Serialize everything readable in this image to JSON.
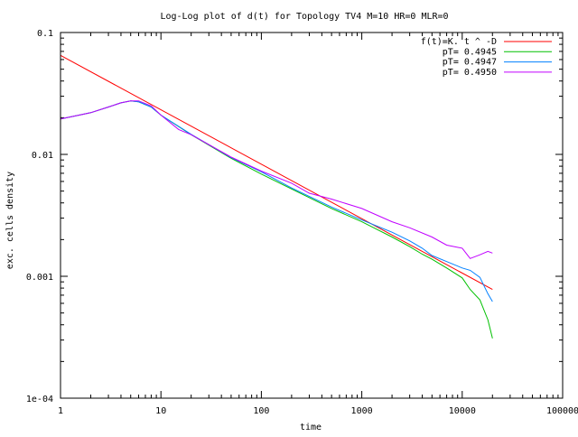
{
  "chart_data": {
    "type": "line",
    "title": "Log-Log plot of d(t) for Topology TV4 M=10 HR=0 MLR=0",
    "xlabel": "time",
    "ylabel": "exc. cells density",
    "xscale": "log",
    "yscale": "log",
    "xlim": [
      1,
      100000
    ],
    "ylim": [
      0.0001,
      0.1
    ],
    "grid": false,
    "legend_position": "top-right",
    "x_ticks": [
      {
        "value": 1,
        "label": "1"
      },
      {
        "value": 10,
        "label": "10"
      },
      {
        "value": 100,
        "label": "100"
      },
      {
        "value": 1000,
        "label": "1000"
      },
      {
        "value": 10000,
        "label": "10000"
      },
      {
        "value": 100000,
        "label": "100000"
      }
    ],
    "y_ticks": [
      {
        "value": 0.0001,
        "label": "1e-04"
      },
      {
        "value": 0.001,
        "label": "0.001"
      },
      {
        "value": 0.01,
        "label": "0.01"
      },
      {
        "value": 0.1,
        "label": "0.1"
      }
    ],
    "series": [
      {
        "name": "f(t)=K. t ^ -D",
        "color": "#ff0000",
        "x": [
          1,
          20000
        ],
        "y": [
          0.065,
          0.00078
        ]
      },
      {
        "name": "pT= 0.4945",
        "color": "#00c000",
        "x": [
          1,
          2,
          3,
          4,
          5,
          6,
          8,
          10,
          20,
          50,
          100,
          200,
          500,
          1000,
          2000,
          3000,
          4000,
          5000,
          7000,
          10000,
          12000,
          15000,
          18000,
          20000
        ],
        "y": [
          0.0195,
          0.022,
          0.0245,
          0.0265,
          0.0275,
          0.027,
          0.0245,
          0.021,
          0.0145,
          0.0093,
          0.0069,
          0.0052,
          0.0036,
          0.0028,
          0.0021,
          0.00175,
          0.00152,
          0.00138,
          0.00117,
          0.00097,
          0.00078,
          0.00064,
          0.00044,
          0.00031
        ]
      },
      {
        "name": "pT= 0.4947",
        "color": "#0080ff",
        "x": [
          1,
          2,
          3,
          4,
          5,
          6,
          8,
          10,
          20,
          50,
          100,
          200,
          500,
          1000,
          2000,
          3000,
          4000,
          5000,
          7000,
          10000,
          12000,
          15000,
          18000,
          20000
        ],
        "y": [
          0.0195,
          0.022,
          0.0245,
          0.0265,
          0.0275,
          0.027,
          0.0245,
          0.021,
          0.0146,
          0.0094,
          0.0072,
          0.0053,
          0.0037,
          0.0029,
          0.0023,
          0.00195,
          0.0017,
          0.00148,
          0.00132,
          0.00117,
          0.00112,
          0.00098,
          0.00072,
          0.00062
        ]
      },
      {
        "name": "pT= 0.4950",
        "color": "#c000ff",
        "x": [
          1,
          2,
          3,
          4,
          5,
          6,
          8,
          10,
          15,
          20,
          50,
          100,
          200,
          300,
          500,
          1000,
          2000,
          3000,
          5000,
          7000,
          10000,
          12000,
          15000,
          18000,
          20000
        ],
        "y": [
          0.0195,
          0.022,
          0.0245,
          0.0265,
          0.0275,
          0.0275,
          0.025,
          0.021,
          0.016,
          0.0145,
          0.0095,
          0.0073,
          0.0058,
          0.0048,
          0.0043,
          0.0036,
          0.0028,
          0.0025,
          0.0021,
          0.0018,
          0.0017,
          0.0014,
          0.0015,
          0.0016,
          0.00155
        ]
      }
    ]
  }
}
